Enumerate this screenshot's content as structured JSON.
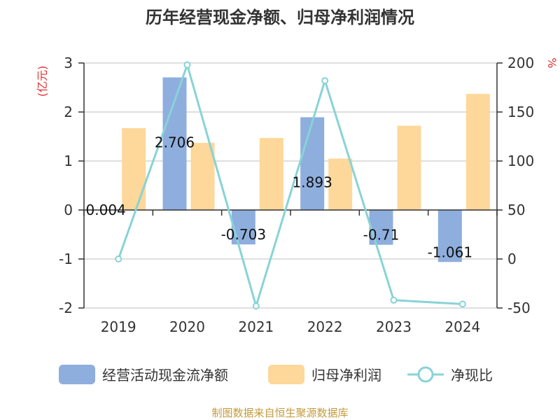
{
  "chart_data": {
    "type": "bar",
    "title": "历年经营现金净额、归母净利润情况",
    "categories": [
      "2019",
      "2020",
      "2021",
      "2022",
      "2023",
      "2024"
    ],
    "y_left": {
      "unit": "(亿元)",
      "range": [
        -2,
        3
      ],
      "ticks": [
        -2,
        -1,
        0,
        1,
        2,
        3
      ]
    },
    "y_right": {
      "unit": "%",
      "range": [
        -50,
        200
      ],
      "ticks": [
        -50,
        0,
        50,
        100,
        150,
        200
      ]
    },
    "series": [
      {
        "name": "经营活动现金流净额",
        "type": "bar",
        "axis": "left",
        "values": [
          0.004,
          2.706,
          -0.703,
          1.893,
          -0.71,
          -1.061
        ],
        "labels": [
          "0.004",
          "2.706",
          "-0.703",
          "1.893",
          "-0.71",
          "-1.061"
        ],
        "color": "#8eaede"
      },
      {
        "name": "归母净利润",
        "type": "bar",
        "axis": "left",
        "values": [
          1.67,
          1.37,
          1.47,
          1.05,
          1.72,
          2.37
        ],
        "color": "#fdd89a"
      },
      {
        "name": "净现比",
        "type": "line",
        "axis": "right",
        "values": [
          0,
          198,
          -48,
          182,
          -42,
          -46
        ],
        "color": "#88d3d7"
      }
    ],
    "grid": true,
    "legend": "bottom"
  },
  "source_text": "制图数据来自恒生聚源数据库"
}
